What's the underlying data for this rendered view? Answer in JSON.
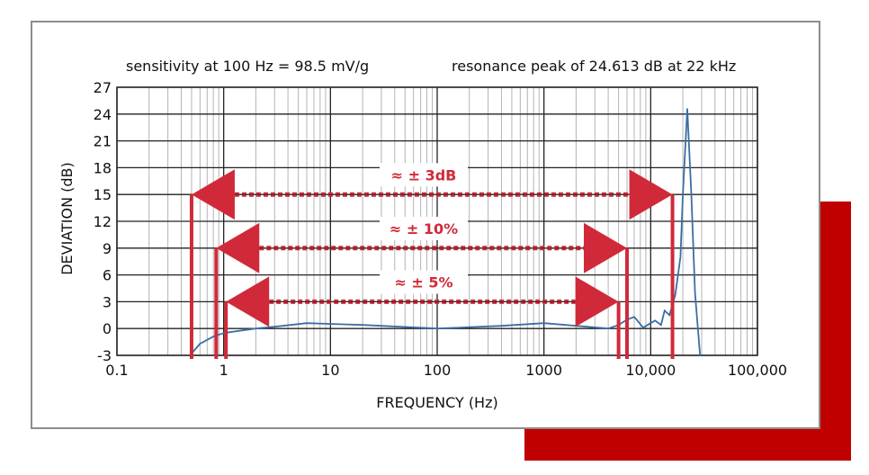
{
  "chart_data": {
    "type": "line",
    "xscale": "log",
    "xlim": [
      0.1,
      100000
    ],
    "ylim": [
      -3,
      27
    ],
    "grid": true,
    "xlabel": "FREQUENCY (Hz)",
    "ylabel": "DEVIATION (dB)",
    "x_tick_labels": [
      {
        "x": 0.1,
        "label": "0.1"
      },
      {
        "x": 1,
        "label": "1"
      },
      {
        "x": 10,
        "label": "10"
      },
      {
        "x": 100,
        "label": "100"
      },
      {
        "x": 1000,
        "label": "1000"
      },
      {
        "x": 10000,
        "label": "10,000"
      },
      {
        "x": 100000,
        "label": "100,000"
      }
    ],
    "y_ticks": [
      27,
      24,
      21,
      18,
      15,
      12,
      9,
      6,
      3,
      0,
      -3
    ],
    "annotations": {
      "sensitivity": "sensitivity at 100 Hz = 98.5 mV/g",
      "resonance": "resonance peak of 24.613 dB at 22 kHz"
    },
    "tolerance_bands": [
      {
        "label": "≈ ± 3dB",
        "y": 15,
        "f_low": 0.5,
        "f_high": 16000
      },
      {
        "label": "≈ ± 10%",
        "y": 9,
        "f_low": 0.85,
        "f_high": 6000
      },
      {
        "label": "≈ ± 5%",
        "y": 3,
        "f_low": 1.05,
        "f_high": 5000
      }
    ],
    "series": [
      {
        "x": [
          0.5,
          0.6,
          0.8,
          1,
          1.5,
          2,
          3,
          6,
          20,
          100,
          400,
          1000,
          2000,
          4000,
          5000,
          6000,
          7000,
          7500,
          8500,
          10000,
          11000,
          12500,
          13500,
          15000,
          17000,
          19000,
          20000,
          22000,
          24000,
          26000,
          29000
        ],
        "y": [
          -2.8,
          -1.7,
          -0.9,
          -0.5,
          -0.2,
          0.0,
          0.2,
          0.6,
          0.4,
          0.0,
          0.3,
          0.6,
          0.3,
          0.0,
          0.4,
          1.0,
          1.3,
          0.9,
          0.1,
          0.6,
          0.9,
          0.4,
          2.0,
          1.5,
          3.8,
          8.0,
          15.0,
          24.6,
          15.0,
          4.0,
          -3.0
        ]
      }
    ],
    "colors": {
      "series": "#3a6ea5",
      "annotation": "#d02a3a",
      "accent": "#c00000"
    }
  }
}
